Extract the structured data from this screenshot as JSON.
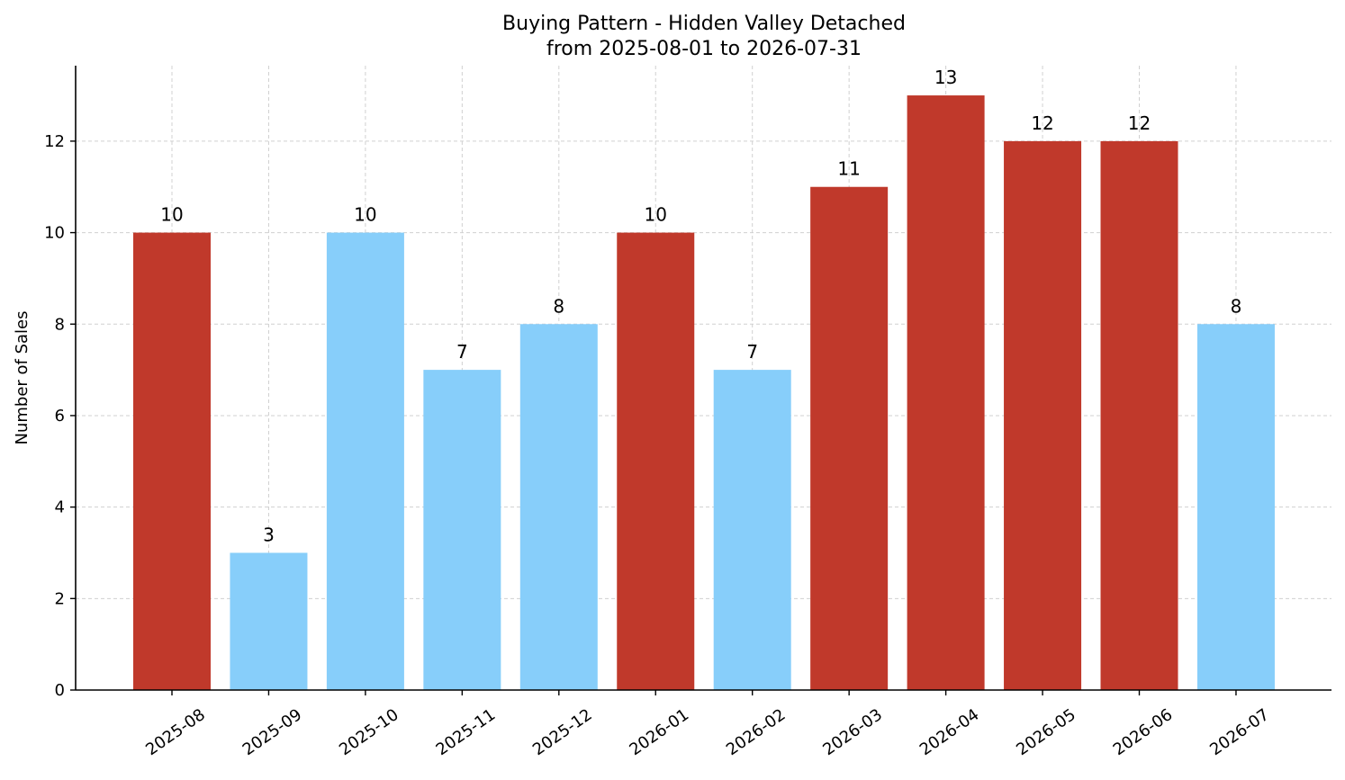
{
  "chart_data": {
    "type": "bar",
    "title": "Buying Pattern - Hidden Valley Detached",
    "subtitle": "from 2025-08-01 to 2026-07-31",
    "xlabel": "",
    "ylabel": "Number of Sales",
    "ylim": [
      0,
      13.65
    ],
    "yticks": [
      0,
      2,
      4,
      6,
      8,
      10,
      12
    ],
    "grid": true,
    "categories": [
      "2025-08",
      "2025-09",
      "2025-10",
      "2025-11",
      "2025-12",
      "2026-01",
      "2026-02",
      "2026-03",
      "2026-04",
      "2026-05",
      "2026-06",
      "2026-07"
    ],
    "values": [
      10,
      3,
      10,
      7,
      8,
      10,
      7,
      11,
      13,
      12,
      12,
      8
    ],
    "bar_colors": [
      "#c0392b",
      "#87cefa",
      "#87cefa",
      "#87cefa",
      "#87cefa",
      "#c0392b",
      "#87cefa",
      "#c0392b",
      "#c0392b",
      "#c0392b",
      "#c0392b",
      "#87cefa"
    ],
    "colors": {
      "high": "#c0392b",
      "low": "#87cefa"
    }
  }
}
